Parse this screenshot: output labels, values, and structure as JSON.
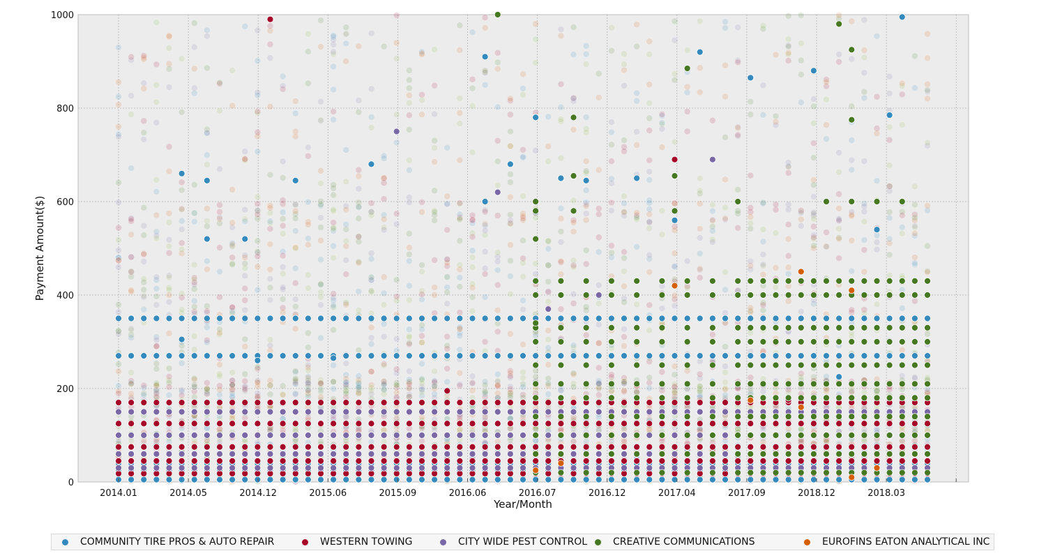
{
  "chart_data": {
    "type": "scatter",
    "xlabel": "Year/Month",
    "ylabel": "Payment Amount($)",
    "ylim": [
      0,
      1000
    ],
    "yticks": [
      "0",
      "200",
      "400",
      "600",
      "800",
      "1000"
    ],
    "xticks": [
      "2014.01",
      "2014.05",
      "2014.12",
      "2015.06",
      "2015.09",
      "2016.06",
      "2016.07",
      "2016.12",
      "2017.04",
      "2017.09",
      "2018.12",
      "2018.03"
    ],
    "grid": true,
    "legend_position": "bottom",
    "background": "#ececec",
    "months": [
      "2014.01",
      "2014.02",
      "2014.03",
      "2014.04",
      "2014.05",
      "2014.06",
      "2014.07",
      "2014.08",
      "2014.09",
      "2014.10",
      "2014.11",
      "2014.12",
      "2015.01",
      "2015.02",
      "2015.03",
      "2015.04",
      "2015.05",
      "2015.06",
      "2015.07",
      "2015.08",
      "2015.09",
      "2015.10",
      "2015.11",
      "2015.12",
      "2016.01",
      "2016.02",
      "2016.03",
      "2016.04",
      "2016.05",
      "2016.06",
      "2016.07",
      "2016.08",
      "2016.09",
      "2016.10",
      "2016.11",
      "2016.12",
      "2017.01",
      "2017.02",
      "2017.03",
      "2017.04",
      "2017.05",
      "2017.06",
      "2017.07",
      "2017.08",
      "2017.09",
      "2017.10",
      "2017.11",
      "2017.12",
      "2018.01",
      "2018.02",
      "2018.03",
      "2018.04",
      "2018.05",
      "2018.06",
      "2018.07",
      "2018.08",
      "2018.09",
      "2018.10",
      "2018.11",
      "2018.12",
      "2019.01",
      "2019.02",
      "2019.03",
      "2019.04",
      "2019.05"
    ],
    "series": [
      {
        "name": "COMMUNITY TIRE PROS & AUTO REPAIR",
        "color": "#348abd",
        "recurring": [
          5,
          25,
          40,
          350,
          270
        ],
        "occasional": [
          {
            "month": 5,
            "value": 305
          },
          {
            "month": 5,
            "value": 660
          },
          {
            "month": 7,
            "value": 645
          },
          {
            "month": 7,
            "value": 520
          },
          {
            "month": 10,
            "value": 520
          },
          {
            "month": 11,
            "value": 260
          },
          {
            "month": 14,
            "value": 645
          },
          {
            "month": 17,
            "value": 265
          },
          {
            "month": 20,
            "value": 680
          },
          {
            "month": 29,
            "value": 600
          },
          {
            "month": 29,
            "value": 910
          },
          {
            "month": 31,
            "value": 680
          },
          {
            "month": 33,
            "value": 780
          },
          {
            "month": 35,
            "value": 650
          },
          {
            "month": 37,
            "value": 645
          },
          {
            "month": 41,
            "value": 650
          },
          {
            "month": 44,
            "value": 560
          },
          {
            "month": 46,
            "value": 920
          },
          {
            "month": 50,
            "value": 865
          },
          {
            "month": 55,
            "value": 880
          },
          {
            "month": 57,
            "value": 225
          },
          {
            "month": 60,
            "value": 540
          },
          {
            "month": 61,
            "value": 785
          },
          {
            "month": 62,
            "value": 995
          }
        ]
      },
      {
        "name": "WESTERN TOWING",
        "color": "#a60628",
        "recurring": [
          18,
          45,
          75,
          125,
          170
        ],
        "occasional": [
          {
            "month": 12,
            "value": 990
          },
          {
            "month": 26,
            "value": 195
          },
          {
            "month": 44,
            "value": 690
          },
          {
            "month": 50,
            "value": 175
          },
          {
            "month": 53,
            "value": 175
          },
          {
            "month": 61,
            "value": 180
          }
        ]
      },
      {
        "name": "CITY WIDE PEST CONTROL",
        "color": "#7a68a6",
        "recurring": [
          30,
          60,
          100,
          150
        ],
        "occasional": [
          {
            "month": 22,
            "value": 750
          },
          {
            "month": 30,
            "value": 620
          },
          {
            "month": 34,
            "value": 370
          },
          {
            "month": 38,
            "value": 400
          },
          {
            "month": 47,
            "value": 690
          }
        ]
      },
      {
        "name": "CREATIVE COMMUNICATIONS",
        "color": "#467821",
        "recurring": [],
        "window": [
          33,
          64
        ],
        "recurring_window": [
          20,
          60,
          100,
          140,
          180,
          210,
          250,
          300,
          330,
          400,
          430
        ],
        "occasional": [
          {
            "month": 30,
            "value": 1000
          },
          {
            "month": 33,
            "value": 600
          },
          {
            "month": 33,
            "value": 580
          },
          {
            "month": 33,
            "value": 520
          },
          {
            "month": 33,
            "value": 340
          },
          {
            "month": 33,
            "value": 300
          },
          {
            "month": 36,
            "value": 780
          },
          {
            "month": 36,
            "value": 655
          },
          {
            "month": 36,
            "value": 580
          },
          {
            "month": 44,
            "value": 655
          },
          {
            "month": 44,
            "value": 580
          },
          {
            "month": 45,
            "value": 885
          },
          {
            "month": 49,
            "value": 600
          },
          {
            "month": 56,
            "value": 600
          },
          {
            "month": 57,
            "value": 980
          },
          {
            "month": 58,
            "value": 925
          },
          {
            "month": 58,
            "value": 775
          },
          {
            "month": 58,
            "value": 600
          },
          {
            "month": 60,
            "value": 600
          },
          {
            "month": 62,
            "value": 600
          }
        ]
      },
      {
        "name": "EUROFINS EATON ANALYTICAL INC",
        "color": "#d55e00",
        "recurring": [],
        "occasional": [
          {
            "month": 33,
            "value": 25
          },
          {
            "month": 35,
            "value": 40
          },
          {
            "month": 44,
            "value": 420
          },
          {
            "month": 50,
            "value": 175
          },
          {
            "month": 54,
            "value": 450
          },
          {
            "month": 54,
            "value": 160
          },
          {
            "month": 58,
            "value": 410
          },
          {
            "month": 58,
            "value": 10
          },
          {
            "month": 60,
            "value": 30
          }
        ]
      }
    ]
  }
}
